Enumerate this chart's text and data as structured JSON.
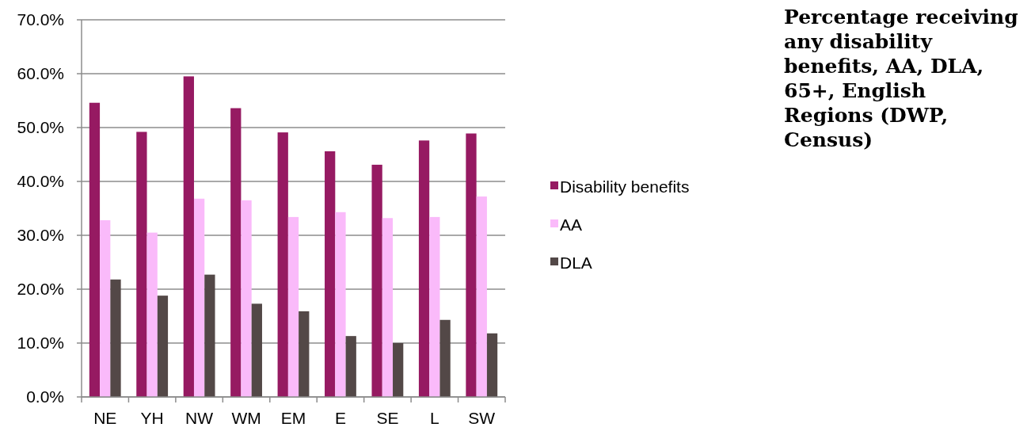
{
  "chart_data": {
    "type": "bar",
    "title": "Percentage receiving any disability benefits, AA, DLA, 65+, English Regions (DWP, Census)",
    "categories": [
      "NE",
      "YH",
      "NW",
      "WM",
      "EM",
      "E",
      "SE",
      "L",
      "SW"
    ],
    "series": [
      {
        "name": "Disability benefits",
        "color": "#961a62",
        "values": [
          54.6,
          49.2,
          59.5,
          53.6,
          49.1,
          45.6,
          43.1,
          47.6,
          48.9
        ]
      },
      {
        "name": "AA",
        "color": "#fabafa",
        "values": [
          32.8,
          30.5,
          36.8,
          36.5,
          33.4,
          34.3,
          33.2,
          33.4,
          37.2
        ]
      },
      {
        "name": "DLA",
        "color": "#534847",
        "values": [
          21.8,
          18.8,
          22.7,
          17.3,
          15.9,
          11.3,
          10.0,
          14.3,
          11.8
        ]
      }
    ],
    "ylim": [
      0,
      70
    ],
    "yticks": [
      {
        "value": 0,
        "label": "0.0%"
      },
      {
        "value": 10,
        "label": "10.0%"
      },
      {
        "value": 20,
        "label": "20.0%"
      },
      {
        "value": 30,
        "label": "30.0%"
      },
      {
        "value": 40,
        "label": "40.0%"
      },
      {
        "value": 50,
        "label": "50.0%"
      },
      {
        "value": 60,
        "label": "60.0%"
      },
      {
        "value": 70,
        "label": "70.0%"
      }
    ],
    "grid": "y",
    "legend": "right"
  }
}
